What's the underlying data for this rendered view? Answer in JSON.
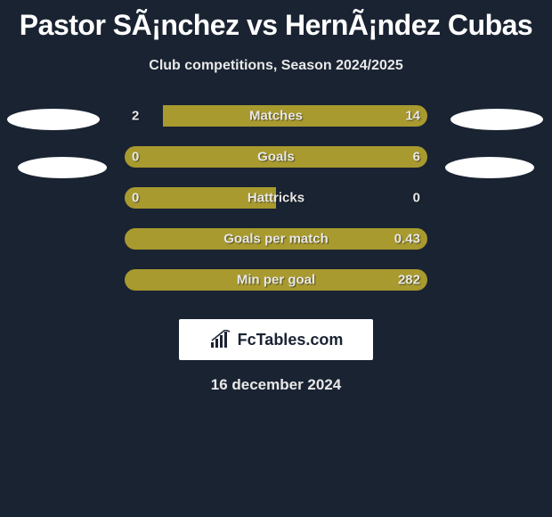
{
  "title": "Pastor SÃ¡nchez vs HernÃ¡ndez Cubas",
  "subtitle": "Club competitions, Season 2024/2025",
  "date": "16 december 2024",
  "logo_text": "FcTables.com",
  "colors": {
    "background": "#1a2332",
    "bar_dark": "#1a2332",
    "bar_olive": "#a89a2e",
    "ellipse": "#ffffff",
    "text": "#e8e8e8"
  },
  "stats": [
    {
      "label": "Matches",
      "left_value": "2",
      "right_value": "14",
      "left_percent": 12.5,
      "left_color": "#1a2332",
      "right_color": "#a89a2e"
    },
    {
      "label": "Goals",
      "left_value": "0",
      "right_value": "6",
      "left_percent": 0,
      "left_color": "#1a2332",
      "right_color": "#a89a2e"
    },
    {
      "label": "Hattricks",
      "left_value": "0",
      "right_value": "0",
      "left_percent": 50,
      "left_color": "#a89a2e",
      "right_color": "#1a2332"
    },
    {
      "label": "Goals per match",
      "left_value": "",
      "right_value": "0.43",
      "left_percent": 0,
      "left_color": "#1a2332",
      "right_color": "#a89a2e"
    },
    {
      "label": "Min per goal",
      "left_value": "",
      "right_value": "282",
      "left_percent": 0,
      "left_color": "#1a2332",
      "right_color": "#a89a2e"
    }
  ]
}
